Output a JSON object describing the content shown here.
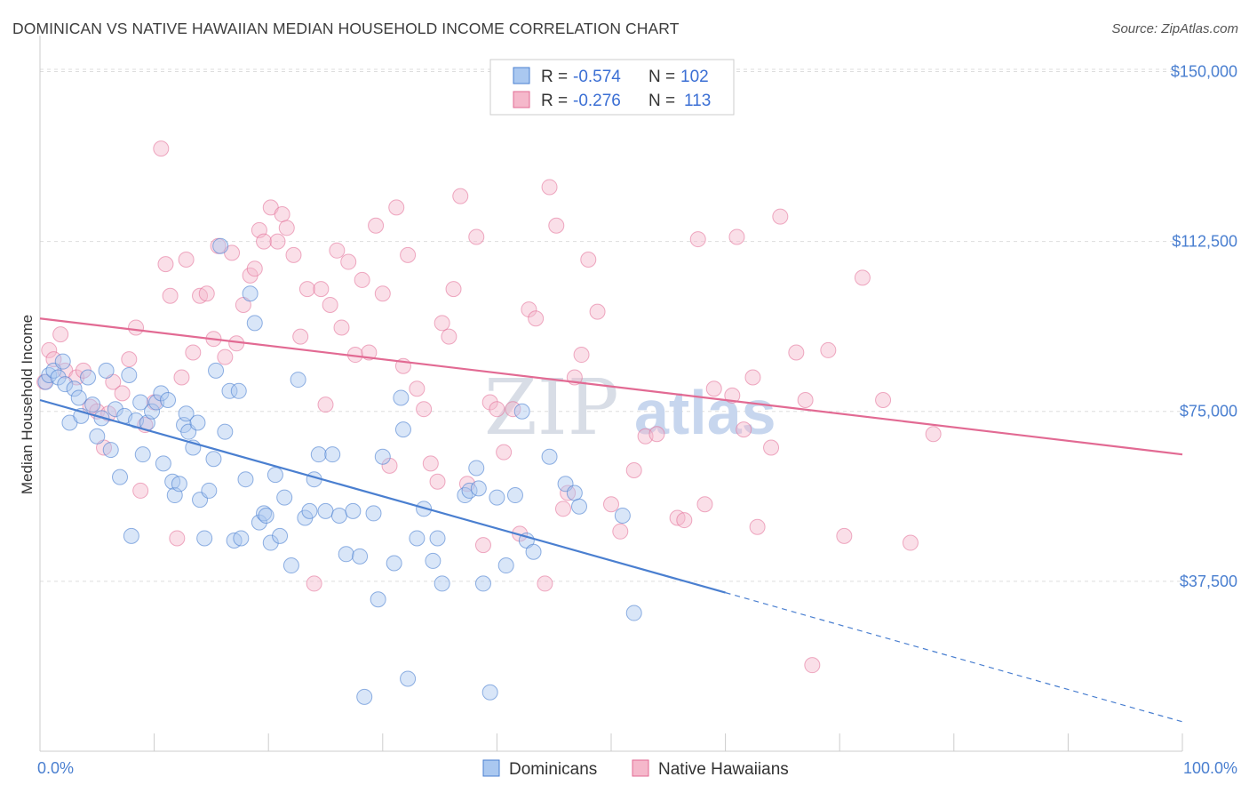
{
  "title": "DOMINICAN VS NATIVE HAWAIIAN MEDIAN HOUSEHOLD INCOME CORRELATION CHART",
  "source": "Source: ZipAtlas.com",
  "watermark": {
    "zip": "ZIP",
    "atlas": "atlas"
  },
  "colors": {
    "blue": "#4a7fd0",
    "blue_fill": "#aac8f0",
    "pink": "#e26a93",
    "pink_fill": "#f5b8cb",
    "grid": "#dddddd"
  },
  "legend": {
    "rows": [
      {
        "r_label": "R =",
        "r_value": "-0.574",
        "n_label": "N =",
        "n_value": "102"
      },
      {
        "r_label": "R =",
        "r_value": "-0.276",
        "n_label": "N =",
        "n_value": "113"
      }
    ]
  },
  "chart_data": {
    "type": "scatter",
    "xlabel": "",
    "ylabel": "Median Household Income",
    "xlim": [
      0,
      100
    ],
    "ylim": [
      0,
      155000
    ],
    "x_tick_labels": [
      "0.0%",
      "100.0%"
    ],
    "y_ticks": [
      {
        "value": 37500,
        "label": "$37,500"
      },
      {
        "value": 75000,
        "label": "$75,000"
      },
      {
        "value": 112500,
        "label": "$112,500"
      },
      {
        "value": 150000,
        "label": "$150,000"
      }
    ],
    "grid": "horizontal dashed",
    "legend_position": "top-center",
    "series": [
      {
        "name": "Dominicans",
        "trend": {
          "x0": 0,
          "y0": 77500,
          "x1": 60,
          "y1": 35000,
          "dash_to_x": 100,
          "dash_to_y": 6500
        },
        "points": [
          [
            0.5,
            81500
          ],
          [
            0.8,
            83000
          ],
          [
            1.2,
            84000
          ],
          [
            1.6,
            82500
          ],
          [
            2.0,
            86000
          ],
          [
            2.2,
            81000
          ],
          [
            2.6,
            72500
          ],
          [
            3.0,
            80000
          ],
          [
            3.4,
            78000
          ],
          [
            3.6,
            74000
          ],
          [
            4.2,
            82500
          ],
          [
            4.6,
            76500
          ],
          [
            5.0,
            69500
          ],
          [
            5.4,
            73500
          ],
          [
            5.8,
            84000
          ],
          [
            6.2,
            66500
          ],
          [
            6.6,
            75500
          ],
          [
            7.0,
            60500
          ],
          [
            7.4,
            74000
          ],
          [
            7.8,
            83000
          ],
          [
            8.0,
            47500
          ],
          [
            8.4,
            73000
          ],
          [
            8.8,
            77000
          ],
          [
            9.0,
            65500
          ],
          [
            9.4,
            72500
          ],
          [
            9.8,
            75000
          ],
          [
            10.2,
            77000
          ],
          [
            10.6,
            79000
          ],
          [
            10.8,
            63500
          ],
          [
            11.2,
            77500
          ],
          [
            11.6,
            59500
          ],
          [
            11.8,
            56500
          ],
          [
            12.2,
            59000
          ],
          [
            12.6,
            72000
          ],
          [
            12.8,
            74500
          ],
          [
            13.0,
            70500
          ],
          [
            13.4,
            67000
          ],
          [
            13.8,
            72500
          ],
          [
            14.0,
            55500
          ],
          [
            14.4,
            47000
          ],
          [
            14.8,
            57500
          ],
          [
            15.2,
            64500
          ],
          [
            15.4,
            84000
          ],
          [
            15.8,
            111500
          ],
          [
            16.2,
            70500
          ],
          [
            16.6,
            79500
          ],
          [
            17.0,
            46500
          ],
          [
            17.4,
            79500
          ],
          [
            17.6,
            47000
          ],
          [
            18.0,
            60000
          ],
          [
            18.4,
            101000
          ],
          [
            18.8,
            94500
          ],
          [
            19.2,
            50500
          ],
          [
            19.6,
            52500
          ],
          [
            19.8,
            52000
          ],
          [
            20.2,
            46000
          ],
          [
            20.6,
            61000
          ],
          [
            21.0,
            47500
          ],
          [
            21.4,
            56000
          ],
          [
            22.0,
            41000
          ],
          [
            22.6,
            82000
          ],
          [
            23.2,
            51500
          ],
          [
            23.6,
            53000
          ],
          [
            24.4,
            65500
          ],
          [
            24.0,
            60000
          ],
          [
            25.0,
            53000
          ],
          [
            25.6,
            65500
          ],
          [
            26.2,
            52000
          ],
          [
            26.8,
            43500
          ],
          [
            27.4,
            53000
          ],
          [
            28.0,
            43000
          ],
          [
            29.2,
            52500
          ],
          [
            29.6,
            33500
          ],
          [
            30.0,
            65000
          ],
          [
            31.0,
            41500
          ],
          [
            31.6,
            78000
          ],
          [
            31.8,
            71000
          ],
          [
            32.2,
            16000
          ],
          [
            33.0,
            47000
          ],
          [
            33.6,
            53500
          ],
          [
            34.4,
            42000
          ],
          [
            34.8,
            47000
          ],
          [
            35.2,
            37000
          ],
          [
            37.2,
            56500
          ],
          [
            37.6,
            57500
          ],
          [
            38.2,
            62500
          ],
          [
            38.4,
            58000
          ],
          [
            38.8,
            37000
          ],
          [
            39.4,
            13000
          ],
          [
            40.0,
            56000
          ],
          [
            40.8,
            41000
          ],
          [
            41.6,
            56500
          ],
          [
            42.2,
            75000
          ],
          [
            42.6,
            46500
          ],
          [
            43.2,
            44000
          ],
          [
            44.6,
            65000
          ],
          [
            46.0,
            59000
          ],
          [
            46.8,
            57000
          ],
          [
            47.2,
            54000
          ],
          [
            51.0,
            52000
          ],
          [
            52.0,
            30500
          ],
          [
            28.4,
            12000
          ]
        ]
      },
      {
        "name": "Native Hawaiians",
        "trend": {
          "x0": 0,
          "y0": 95500,
          "x1": 100,
          "y1": 65500
        },
        "points": [
          [
            0.4,
            81500
          ],
          [
            0.8,
            88500
          ],
          [
            1.2,
            86500
          ],
          [
            1.8,
            92000
          ],
          [
            2.2,
            84000
          ],
          [
            3.2,
            82500
          ],
          [
            3.8,
            84000
          ],
          [
            4.4,
            76000
          ],
          [
            5.0,
            75000
          ],
          [
            5.6,
            67000
          ],
          [
            6.0,
            74500
          ],
          [
            6.4,
            81500
          ],
          [
            7.2,
            79000
          ],
          [
            7.8,
            86500
          ],
          [
            8.4,
            93500
          ],
          [
            8.8,
            57500
          ],
          [
            9.2,
            72000
          ],
          [
            10.0,
            77000
          ],
          [
            10.6,
            133000
          ],
          [
            11.0,
            107500
          ],
          [
            11.4,
            100500
          ],
          [
            12.0,
            47000
          ],
          [
            12.4,
            82500
          ],
          [
            12.8,
            108500
          ],
          [
            13.4,
            88000
          ],
          [
            14.0,
            100500
          ],
          [
            14.6,
            101000
          ],
          [
            15.2,
            91000
          ],
          [
            15.6,
            111500
          ],
          [
            16.2,
            87000
          ],
          [
            16.8,
            110000
          ],
          [
            17.2,
            90000
          ],
          [
            17.8,
            98500
          ],
          [
            18.4,
            105000
          ],
          [
            18.8,
            106500
          ],
          [
            19.2,
            115000
          ],
          [
            19.6,
            112500
          ],
          [
            20.2,
            120000
          ],
          [
            20.8,
            112500
          ],
          [
            21.2,
            118500
          ],
          [
            21.6,
            115500
          ],
          [
            22.2,
            109500
          ],
          [
            22.8,
            91500
          ],
          [
            23.4,
            102000
          ],
          [
            24.0,
            37000
          ],
          [
            24.6,
            102000
          ],
          [
            25.0,
            76500
          ],
          [
            25.4,
            98500
          ],
          [
            26.0,
            110500
          ],
          [
            26.4,
            93500
          ],
          [
            27.0,
            108000
          ],
          [
            27.6,
            87500
          ],
          [
            28.2,
            104000
          ],
          [
            28.8,
            88000
          ],
          [
            29.4,
            116000
          ],
          [
            30.0,
            101000
          ],
          [
            30.6,
            63000
          ],
          [
            31.2,
            120000
          ],
          [
            31.8,
            85000
          ],
          [
            32.2,
            109500
          ],
          [
            33.0,
            80000
          ],
          [
            33.6,
            75500
          ],
          [
            34.2,
            63500
          ],
          [
            34.8,
            59500
          ],
          [
            35.2,
            94500
          ],
          [
            35.8,
            91500
          ],
          [
            36.2,
            102000
          ],
          [
            36.8,
            122500
          ],
          [
            37.4,
            59000
          ],
          [
            38.2,
            113500
          ],
          [
            38.8,
            45500
          ],
          [
            39.4,
            77000
          ],
          [
            40.0,
            75500
          ],
          [
            40.6,
            66000
          ],
          [
            41.4,
            75500
          ],
          [
            42.0,
            48000
          ],
          [
            42.8,
            97500
          ],
          [
            43.4,
            95500
          ],
          [
            44.2,
            37000
          ],
          [
            44.6,
            124500
          ],
          [
            45.2,
            116000
          ],
          [
            45.8,
            53500
          ],
          [
            46.2,
            57000
          ],
          [
            46.8,
            82500
          ],
          [
            47.4,
            87500
          ],
          [
            48.0,
            108500
          ],
          [
            48.8,
            97000
          ],
          [
            50.0,
            54500
          ],
          [
            50.8,
            48500
          ],
          [
            52.0,
            62000
          ],
          [
            53.0,
            69500
          ],
          [
            54.0,
            70000
          ],
          [
            55.8,
            51500
          ],
          [
            56.4,
            51000
          ],
          [
            57.6,
            113000
          ],
          [
            58.2,
            54500
          ],
          [
            59.0,
            80000
          ],
          [
            60.6,
            78500
          ],
          [
            61.0,
            113500
          ],
          [
            61.6,
            71000
          ],
          [
            62.4,
            82500
          ],
          [
            62.8,
            49500
          ],
          [
            64.0,
            67000
          ],
          [
            64.8,
            118000
          ],
          [
            66.2,
            88000
          ],
          [
            67.0,
            77500
          ],
          [
            67.6,
            19000
          ],
          [
            69.0,
            88500
          ],
          [
            70.4,
            47500
          ],
          [
            72.0,
            104500
          ],
          [
            73.8,
            77500
          ],
          [
            76.2,
            46000
          ],
          [
            78.2,
            70000
          ]
        ]
      }
    ]
  },
  "bottom_legend": [
    "Dominicans",
    "Native Hawaiians"
  ]
}
